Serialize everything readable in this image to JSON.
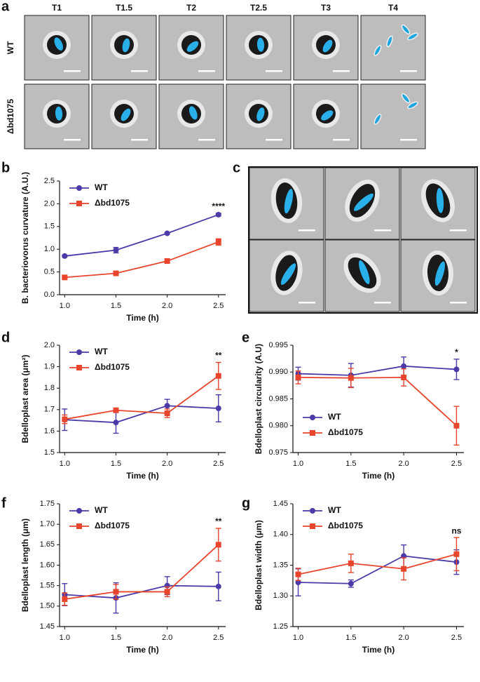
{
  "micrographs": {
    "panel_a": "a",
    "panel_c": "c",
    "columns": [
      "T1",
      "T1.5",
      "T2",
      "T2.5",
      "T3",
      "T4"
    ],
    "rows": [
      "WT",
      "Δbd1075"
    ]
  },
  "chart_data": [
    {
      "type": "line",
      "panel": "b",
      "ylabel": "B. bacteriovorus curvature (A.U.)",
      "xlabel": "Time (h)",
      "annotation": "****",
      "legend": "upper left",
      "x": [
        1.0,
        1.5,
        2.0,
        2.5
      ],
      "xlim": [
        0.95,
        2.57
      ],
      "xticks": [
        {
          "value": 1,
          "label": "1.0"
        },
        1.5,
        {
          "value": 2,
          "label": "2.0"
        },
        2.5
      ],
      "ylim": [
        0,
        2.5
      ],
      "yticks": [
        {
          "value": 0,
          "label": "0.0"
        },
        0.5,
        {
          "value": 1,
          "label": "1.0"
        },
        1.5,
        {
          "value": 2,
          "label": "2.0"
        },
        2.5
      ],
      "series": [
        {
          "name": "WT",
          "color": "#4b3aa8",
          "marker": "circle",
          "values": [
            0.85,
            0.98,
            1.35,
            1.76
          ],
          "errors": [
            0.02,
            0.06,
            0.02,
            0.03
          ]
        },
        {
          "name": "Δbd1075",
          "color": "#e8452c",
          "marker": "square",
          "values": [
            0.38,
            0.47,
            0.74,
            1.16
          ],
          "errors": [
            0.02,
            0.03,
            0.04,
            0.07
          ]
        }
      ]
    },
    {
      "type": "line",
      "panel": "d",
      "ylabel": "Bdelloplast area (μm²)",
      "xlabel": "Time (h)",
      "annotation": "**",
      "legend": "upper left",
      "x": [
        1.0,
        1.5,
        2.0,
        2.5
      ],
      "xlim": [
        0.95,
        2.57
      ],
      "xticks": [
        {
          "value": 1,
          "label": "1.0"
        },
        1.5,
        {
          "value": 2,
          "label": "2.0"
        },
        2.5
      ],
      "ylim": [
        1.5,
        2.0
      ],
      "yticks": [
        1.5,
        1.6,
        1.7,
        1.8,
        1.9,
        {
          "value": 2,
          "label": "2.0"
        }
      ],
      "series": [
        {
          "name": "WT",
          "color": "#4b3aa8",
          "marker": "circle",
          "values": [
            1.653,
            1.64,
            1.718,
            1.706
          ],
          "errors": [
            0.05,
            0.05,
            0.03,
            0.063
          ]
        },
        {
          "name": "Δbd1075",
          "color": "#e8452c",
          "marker": "square",
          "values": [
            1.655,
            1.697,
            1.683,
            1.857
          ],
          "errors": [
            0.02,
            0.01,
            0.02,
            0.063
          ]
        }
      ]
    },
    {
      "type": "line",
      "panel": "e",
      "ylabel": "Bdelloplast circularity (A.U)",
      "xlabel": "Time (h)",
      "annotation": "*",
      "legend": "lower left",
      "x": [
        1.0,
        1.5,
        2.0,
        2.5
      ],
      "xlim": [
        0.95,
        2.57
      ],
      "xticks": [
        {
          "value": 1,
          "label": "1.0"
        },
        1.5,
        {
          "value": 2,
          "label": "2.0"
        },
        2.5
      ],
      "ylim": [
        0.975,
        0.995
      ],
      "yticks": [
        0.975,
        {
          "value": 0.98,
          "label": "0.980"
        },
        0.985,
        {
          "value": 0.99,
          "label": "0.990"
        },
        0.995
      ],
      "series": [
        {
          "name": "WT",
          "color": "#4b3aa8",
          "marker": "circle",
          "values": [
            0.9897,
            0.9894,
            0.9911,
            0.9905
          ],
          "errors": [
            0.0012,
            0.0022,
            0.0017,
            0.0019
          ]
        },
        {
          "name": "Δbd1075",
          "color": "#e8452c",
          "marker": "square",
          "values": [
            0.989,
            0.9889,
            0.989,
            0.98
          ],
          "errors": [
            0.0012,
            0.0018,
            0.0016,
            0.0036
          ]
        }
      ]
    },
    {
      "type": "line",
      "panel": "f",
      "ylabel": "Bdelloplast length (μm)",
      "xlabel": "Time (h)",
      "annotation": "**",
      "legend": "upper left",
      "x": [
        1.0,
        1.5,
        2.0,
        2.5
      ],
      "xlim": [
        0.95,
        2.57
      ],
      "xticks": [
        {
          "value": 1,
          "label": "1.0"
        },
        1.5,
        {
          "value": 2,
          "label": "2.0"
        },
        2.5
      ],
      "ylim": [
        1.45,
        1.75
      ],
      "yticks": [
        1.45,
        {
          "value": 1.5,
          "label": "1.50"
        },
        1.55,
        {
          "value": 1.6,
          "label": "1.60"
        },
        1.65,
        {
          "value": 1.7,
          "label": "1.70"
        },
        1.75
      ],
      "series": [
        {
          "name": "WT",
          "color": "#4b3aa8",
          "marker": "circle",
          "values": [
            1.528,
            1.52,
            1.55,
            1.548
          ],
          "errors": [
            0.027,
            0.037,
            0.022,
            0.035
          ]
        },
        {
          "name": "Δbd1075",
          "color": "#e8452c",
          "marker": "square",
          "values": [
            1.517,
            1.535,
            1.535,
            1.65
          ],
          "errors": [
            0.015,
            0.018,
            0.012,
            0.04
          ]
        }
      ]
    },
    {
      "type": "line",
      "panel": "g",
      "ylabel": "Bdelloplast width (μm)",
      "xlabel": "Time (h)",
      "annotation": "ns",
      "legend": "upper left",
      "x": [
        1.0,
        1.5,
        2.0,
        2.5
      ],
      "xlim": [
        0.95,
        2.57
      ],
      "xticks": [
        {
          "value": 1,
          "label": "1.0"
        },
        1.5,
        {
          "value": 2,
          "label": "2.0"
        },
        2.5
      ],
      "ylim": [
        1.25,
        1.45
      ],
      "yticks": [
        1.25,
        {
          "value": 1.3,
          "label": "1.30"
        },
        1.35,
        {
          "value": 1.4,
          "label": "1.40"
        },
        1.45
      ],
      "series": [
        {
          "name": "WT",
          "color": "#4b3aa8",
          "marker": "circle",
          "values": [
            1.322,
            1.32,
            1.365,
            1.355
          ],
          "errors": [
            0.022,
            0.006,
            0.018,
            0.02
          ]
        },
        {
          "name": "Δbd1075",
          "color": "#e8452c",
          "marker": "square",
          "values": [
            1.335,
            1.353,
            1.344,
            1.368
          ],
          "errors": [
            0.01,
            0.015,
            0.018,
            0.027
          ]
        }
      ]
    }
  ]
}
